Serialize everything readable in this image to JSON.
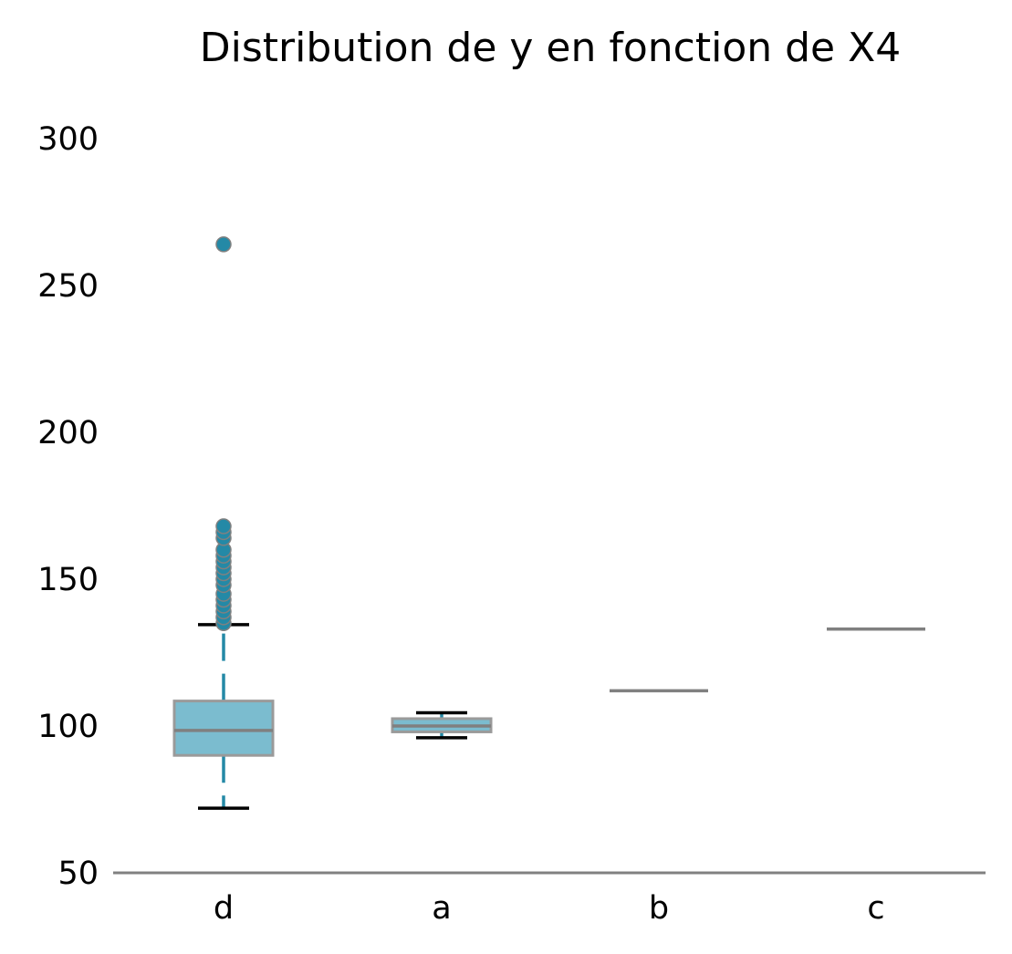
{
  "chart_data": {
    "type": "box",
    "title": "Distribution de y en fonction de X4",
    "xlabel": "",
    "ylabel": "",
    "ylim": [
      50,
      315
    ],
    "yticks": [
      50,
      100,
      150,
      200,
      250,
      300
    ],
    "ytick_labels": [
      "50",
      "100",
      "150",
      "200",
      "250",
      "300"
    ],
    "categories": [
      "d",
      "a",
      "b",
      "c"
    ],
    "boxes": [
      {
        "category": "d",
        "whisker_low": 72,
        "q1": 90,
        "median": 98.5,
        "q3": 108.5,
        "whisker_high": 134.5,
        "outliers": [
          135,
          137,
          139,
          141,
          143,
          145,
          148,
          150,
          152,
          154,
          156,
          158,
          160,
          164,
          166,
          168,
          264
        ]
      },
      {
        "category": "a",
        "whisker_low": 96,
        "q1": 98,
        "median": 100,
        "q3": 102.5,
        "whisker_high": 104.5,
        "outliers": []
      },
      {
        "category": "b",
        "whisker_low": 112,
        "q1": 112,
        "median": 112,
        "q3": 112,
        "whisker_high": 112,
        "outliers": []
      },
      {
        "category": "c",
        "whisker_low": 133,
        "q1": 133,
        "median": 133,
        "q3": 133,
        "whisker_high": 133,
        "outliers": []
      }
    ],
    "grid": false,
    "legend": "none"
  },
  "colors": {
    "box_fill": "#7bbccf",
    "box_edge": "#9a9a9a",
    "median": "#808080",
    "whisker": "#2489a6",
    "cap": "#000000",
    "outlier_fill": "#2489a6",
    "outlier_edge": "#808080",
    "axis": "#808080"
  }
}
